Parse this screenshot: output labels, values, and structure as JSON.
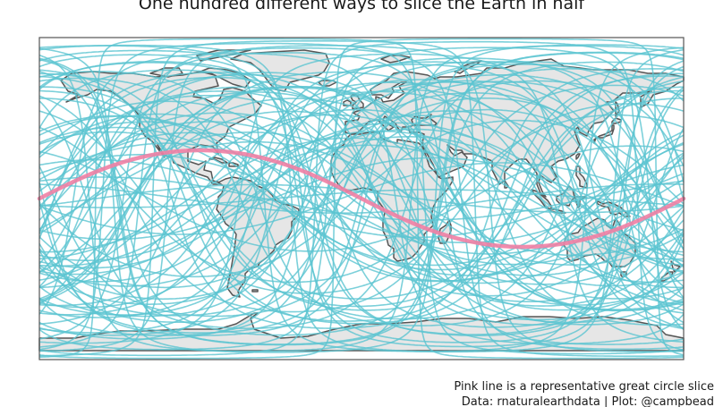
{
  "title": "One hundred different ways to slice the Earth in half",
  "caption": {
    "line1": "Pink line is a representative great circle slice",
    "line2": "Data: rnaturalearthdata | Plot: @campbead"
  },
  "map": {
    "projection": "equirectangular",
    "background_color": "#ffffff",
    "land_fill": "#e6e6e6",
    "land_outline": "#555555",
    "circle_color": "#5bc4d1",
    "highlight_color": "#f07fa4",
    "great_circle_count": 100,
    "highlight_circle": {
      "node_longitude": -180,
      "max_latitude": 27
    }
  }
}
